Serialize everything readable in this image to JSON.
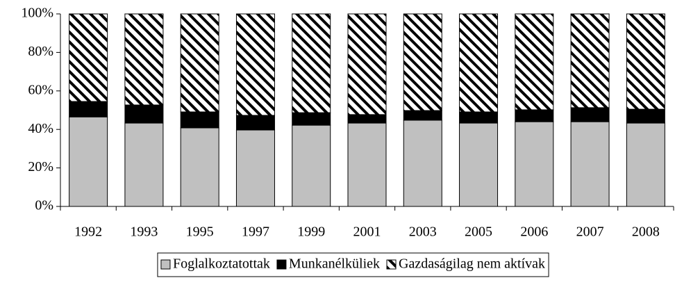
{
  "chart_data": {
    "type": "stacked_bar",
    "categories": [
      "1992",
      "1993",
      "1995",
      "1997",
      "1999",
      "2001",
      "2003",
      "2005",
      "2006",
      "2007",
      "2008"
    ],
    "series": [
      {
        "name": "Foglalkoztatottak",
        "color": "#c0c0c0",
        "hatch": false,
        "values": [
          46.5,
          43.3,
          40.8,
          39.7,
          42.2,
          43.3,
          44.8,
          43.3,
          44,
          44,
          43.3
        ]
      },
      {
        "name": "Munkanélküliek",
        "color": "#000000",
        "hatch": false,
        "values": [
          8,
          9.4,
          8.3,
          7.6,
          6.5,
          4.4,
          5,
          5.8,
          6.2,
          7.3,
          7.2
        ]
      },
      {
        "name": "Gazdaságilag nem aktívak",
        "color": "#000000",
        "hatch": true,
        "values": [
          45.5,
          47.3,
          50.9,
          52.7,
          51.3,
          52.3,
          50.2,
          50.9,
          49.8,
          48.7,
          49.5
        ]
      }
    ],
    "ylim": [
      0,
      100
    ],
    "yticks": [
      {
        "value": 0,
        "label": "0%"
      },
      {
        "value": 20,
        "label": "20%"
      },
      {
        "value": 40,
        "label": "40%"
      },
      {
        "value": 60,
        "label": "60%"
      },
      {
        "value": 80,
        "label": "80%"
      },
      {
        "value": 100,
        "label": "100%"
      }
    ],
    "legend": "bottom"
  }
}
